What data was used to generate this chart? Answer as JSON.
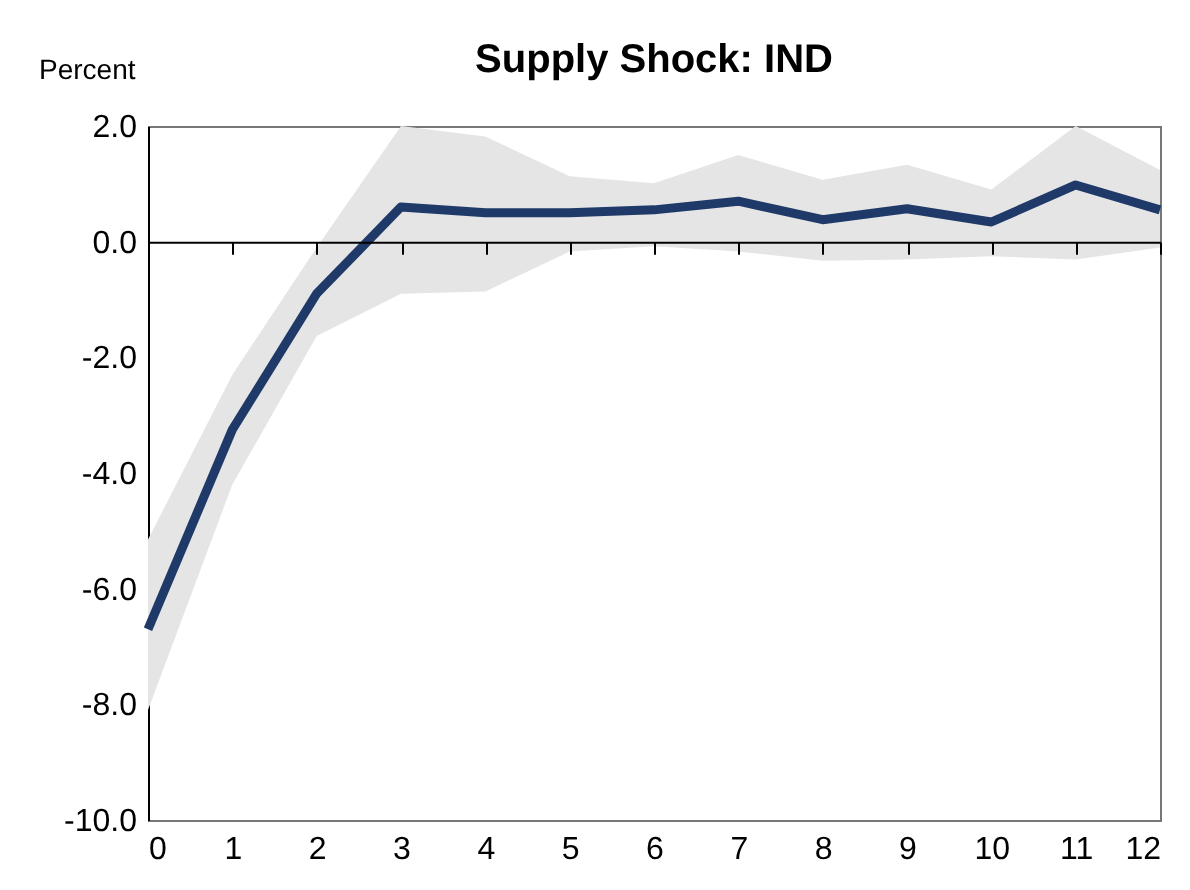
{
  "chart_data": {
    "type": "line",
    "title": "Supply Shock: IND",
    "ylabel": "Percent",
    "x": [
      0,
      1,
      2,
      3,
      4,
      5,
      6,
      7,
      8,
      9,
      10,
      11,
      12
    ],
    "series": [
      {
        "color": "#1f3a68",
        "values": [
          -6.7,
          -3.25,
          -0.9,
          0.6,
          0.5,
          0.5,
          0.55,
          0.7,
          0.38,
          0.57,
          0.34,
          0.98,
          0.55
        ],
        "lower": [
          -8.1,
          -4.2,
          -1.63,
          -0.9,
          -0.86,
          -0.17,
          -0.08,
          -0.17,
          -0.33,
          -0.31,
          -0.25,
          -0.31,
          -0.1
        ],
        "upper": [
          -5.15,
          -2.3,
          -0.1,
          2.0,
          1.82,
          1.13,
          1.01,
          1.5,
          1.07,
          1.33,
          0.9,
          2.0,
          1.24
        ]
      }
    ],
    "xlim": [
      0,
      12
    ],
    "xticks": [
      0,
      1,
      2,
      3,
      4,
      5,
      6,
      7,
      8,
      9,
      10,
      11,
      12
    ],
    "ylim": [
      -10,
      2
    ],
    "yticks": [
      {
        "value": -10,
        "label": "-10.0"
      },
      {
        "value": -8,
        "label": "-8.0"
      },
      {
        "value": -6,
        "label": "-6.0"
      },
      {
        "value": -4,
        "label": "-4.0"
      },
      {
        "value": -2,
        "label": "-2.0"
      },
      {
        "value": 0,
        "label": "0.0"
      },
      {
        "value": 2,
        "label": "2.0"
      }
    ],
    "marker": "none",
    "line_style": "solid"
  }
}
